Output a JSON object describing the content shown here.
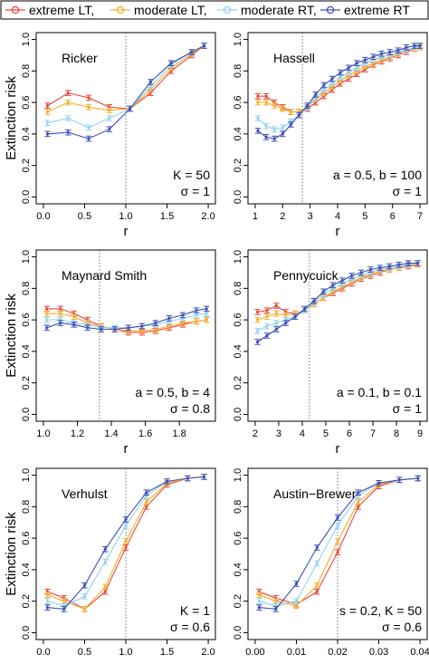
{
  "legend": {
    "placement": "top",
    "entries": [
      {
        "label": "extreme LT,",
        "color": "#e8453c"
      },
      {
        "label": "moderate LT,",
        "color": "#f5b02c"
      },
      {
        "label": "moderate RT,",
        "color": "#8fd3f2"
      },
      {
        "label": "extreme RT",
        "color": "#3d4fb8"
      }
    ]
  },
  "ylabel": "Extinction risk",
  "chart_data": [
    {
      "type": "line",
      "title": "Ricker",
      "annotation": [
        "K = 50",
        "σ = 1"
      ],
      "xlabel": "r",
      "ylabel": "Extinction risk",
      "xlim": [
        0,
        2
      ],
      "ylim": [
        0,
        1
      ],
      "xticks": [
        "0.0",
        "0.5",
        "1.0",
        "1.5",
        "2.0"
      ],
      "yticks": [
        "0.0",
        "0.2",
        "0.4",
        "0.6",
        "0.8",
        "1.0"
      ],
      "vline": 1.0,
      "x": [
        0.05,
        0.3,
        0.55,
        0.8,
        1.05,
        1.3,
        1.55,
        1.8,
        1.95
      ],
      "series": [
        {
          "name": "extreme LT",
          "values": [
            0.58,
            0.66,
            0.63,
            0.57,
            0.56,
            0.66,
            0.8,
            0.9,
            0.96
          ]
        },
        {
          "name": "moderate LT",
          "values": [
            0.54,
            0.6,
            0.57,
            0.55,
            0.56,
            0.68,
            0.82,
            0.91,
            0.96
          ]
        },
        {
          "name": "moderate RT",
          "values": [
            0.47,
            0.5,
            0.44,
            0.5,
            0.56,
            0.7,
            0.84,
            0.92,
            0.96
          ]
        },
        {
          "name": "extreme RT",
          "values": [
            0.4,
            0.41,
            0.37,
            0.43,
            0.56,
            0.73,
            0.85,
            0.92,
            0.96
          ]
        }
      ]
    },
    {
      "type": "line",
      "title": "Hassell",
      "annotation": [
        "a = 0.5, b = 100",
        "σ = 1"
      ],
      "xlabel": "r",
      "ylabel": "",
      "xlim": [
        1,
        7
      ],
      "ylim": [
        0,
        1
      ],
      "xticks": [
        "1",
        "2",
        "3",
        "4",
        "5",
        "6",
        "7"
      ],
      "yticks": [
        "0.0",
        "0.2",
        "0.4",
        "0.6",
        "0.8",
        "1.0"
      ],
      "vline": 2.72,
      "x": [
        1.1,
        1.4,
        1.7,
        2.0,
        2.3,
        2.6,
        2.9,
        3.2,
        3.5,
        3.8,
        4.1,
        4.4,
        4.7,
        5.0,
        5.3,
        5.6,
        5.9,
        6.2,
        6.5,
        6.8,
        7.0
      ],
      "series": [
        {
          "name": "extreme LT",
          "values": [
            0.64,
            0.64,
            0.6,
            0.57,
            0.54,
            0.54,
            0.56,
            0.6,
            0.64,
            0.68,
            0.72,
            0.75,
            0.78,
            0.81,
            0.84,
            0.86,
            0.88,
            0.9,
            0.92,
            0.94,
            0.95
          ]
        },
        {
          "name": "moderate LT",
          "values": [
            0.6,
            0.6,
            0.58,
            0.56,
            0.54,
            0.54,
            0.57,
            0.62,
            0.66,
            0.7,
            0.74,
            0.77,
            0.8,
            0.83,
            0.85,
            0.87,
            0.89,
            0.91,
            0.93,
            0.94,
            0.95
          ]
        },
        {
          "name": "moderate RT",
          "values": [
            0.5,
            0.45,
            0.43,
            0.44,
            0.48,
            0.52,
            0.57,
            0.63,
            0.68,
            0.72,
            0.76,
            0.79,
            0.82,
            0.85,
            0.87,
            0.89,
            0.9,
            0.92,
            0.93,
            0.95,
            0.96
          ]
        },
        {
          "name": "extreme RT",
          "values": [
            0.42,
            0.38,
            0.37,
            0.4,
            0.46,
            0.52,
            0.58,
            0.65,
            0.71,
            0.75,
            0.79,
            0.82,
            0.85,
            0.87,
            0.89,
            0.91,
            0.92,
            0.93,
            0.95,
            0.96,
            0.96
          ]
        }
      ]
    },
    {
      "type": "line",
      "title": "Maynard Smith",
      "annotation": [
        "a = 0.5, b = 4",
        "σ = 0.8"
      ],
      "xlabel": "r",
      "ylabel": "Extinction risk",
      "xlim": [
        1.0,
        1.97
      ],
      "ylim": [
        0,
        1
      ],
      "xticks": [
        "1.0",
        "1.2",
        "1.4",
        "1.6",
        "1.8"
      ],
      "yticks": [
        "0.0",
        "0.2",
        "0.4",
        "0.6",
        "0.8",
        "1.0"
      ],
      "vline": 1.33,
      "x": [
        1.02,
        1.1,
        1.18,
        1.26,
        1.34,
        1.42,
        1.5,
        1.58,
        1.66,
        1.74,
        1.82,
        1.9,
        1.96
      ],
      "series": [
        {
          "name": "extreme LT",
          "values": [
            0.67,
            0.67,
            0.64,
            0.6,
            0.56,
            0.54,
            0.52,
            0.52,
            0.53,
            0.55,
            0.57,
            0.59,
            0.6
          ]
        },
        {
          "name": "moderate LT",
          "values": [
            0.64,
            0.64,
            0.62,
            0.58,
            0.56,
            0.54,
            0.53,
            0.53,
            0.54,
            0.56,
            0.58,
            0.59,
            0.6
          ]
        },
        {
          "name": "moderate RT",
          "values": [
            0.6,
            0.6,
            0.58,
            0.57,
            0.55,
            0.55,
            0.55,
            0.56,
            0.57,
            0.59,
            0.61,
            0.63,
            0.64
          ]
        },
        {
          "name": "extreme RT",
          "values": [
            0.55,
            0.58,
            0.57,
            0.55,
            0.54,
            0.54,
            0.55,
            0.56,
            0.58,
            0.61,
            0.63,
            0.66,
            0.67
          ]
        }
      ]
    },
    {
      "type": "line",
      "title": "Pennycuick",
      "annotation": [
        "a = 0.1, b = 0.1",
        "σ = 1"
      ],
      "xlabel": "r",
      "ylabel": "",
      "xlim": [
        2,
        9
      ],
      "ylim": [
        0,
        1
      ],
      "xticks": [
        "2",
        "3",
        "4",
        "5",
        "6",
        "7",
        "8",
        "9"
      ],
      "yticks": [
        "0.0",
        "0.2",
        "0.4",
        "0.6",
        "0.8",
        "1.0"
      ],
      "vline": 4.3,
      "x": [
        2.1,
        2.5,
        2.9,
        3.3,
        3.7,
        4.1,
        4.5,
        4.9,
        5.3,
        5.7,
        6.1,
        6.5,
        6.9,
        7.3,
        7.7,
        8.1,
        8.5,
        8.9
      ],
      "series": [
        {
          "name": "extreme LT",
          "values": [
            0.65,
            0.66,
            0.69,
            0.65,
            0.64,
            0.66,
            0.7,
            0.74,
            0.77,
            0.8,
            0.83,
            0.86,
            0.88,
            0.9,
            0.92,
            0.93,
            0.94,
            0.95
          ]
        },
        {
          "name": "moderate LT",
          "values": [
            0.6,
            0.62,
            0.64,
            0.63,
            0.64,
            0.66,
            0.7,
            0.74,
            0.78,
            0.81,
            0.84,
            0.87,
            0.89,
            0.91,
            0.92,
            0.93,
            0.95,
            0.95
          ]
        },
        {
          "name": "moderate RT",
          "values": [
            0.53,
            0.56,
            0.58,
            0.6,
            0.62,
            0.66,
            0.71,
            0.76,
            0.8,
            0.83,
            0.86,
            0.88,
            0.9,
            0.92,
            0.93,
            0.94,
            0.95,
            0.96
          ]
        },
        {
          "name": "extreme RT",
          "values": [
            0.46,
            0.5,
            0.54,
            0.58,
            0.62,
            0.67,
            0.72,
            0.78,
            0.82,
            0.85,
            0.88,
            0.9,
            0.92,
            0.93,
            0.94,
            0.95,
            0.96,
            0.96
          ]
        }
      ]
    },
    {
      "type": "line",
      "title": "Verhulst",
      "annotation": [
        "K = 1",
        "σ = 0.6"
      ],
      "xlabel": "r",
      "ylabel": "Extinction risk",
      "xlim": [
        0,
        2
      ],
      "ylim": [
        0,
        1
      ],
      "xticks": [
        "0.0",
        "0.5",
        "1.0",
        "1.5",
        "2.0"
      ],
      "yticks": [
        "0.0",
        "0.2",
        "0.4",
        "0.6",
        "0.8",
        "1.0"
      ],
      "vline": 1.0,
      "x": [
        0.05,
        0.25,
        0.5,
        0.75,
        1.0,
        1.25,
        1.5,
        1.75,
        1.95
      ],
      "series": [
        {
          "name": "extreme LT",
          "values": [
            0.26,
            0.22,
            0.15,
            0.26,
            0.54,
            0.8,
            0.94,
            0.98,
            0.99
          ]
        },
        {
          "name": "moderate LT",
          "values": [
            0.24,
            0.2,
            0.15,
            0.29,
            0.58,
            0.83,
            0.95,
            0.98,
            0.99
          ]
        },
        {
          "name": "moderate RT",
          "values": [
            0.2,
            0.17,
            0.23,
            0.45,
            0.68,
            0.87,
            0.96,
            0.98,
            0.99
          ]
        },
        {
          "name": "extreme RT",
          "values": [
            0.16,
            0.15,
            0.3,
            0.53,
            0.72,
            0.89,
            0.96,
            0.98,
            0.99
          ]
        }
      ]
    },
    {
      "type": "line",
      "title": "Austin−Brewer",
      "annotation": [
        "s = 0.2, K = 50",
        "σ = 0.6"
      ],
      "xlabel": "r",
      "ylabel": "",
      "xlim": [
        0,
        0.04
      ],
      "ylim": [
        0,
        1
      ],
      "xticks": [
        "0.00",
        "0.01",
        "0.02",
        "0.03",
        "0.04"
      ],
      "yticks": [
        "0.0",
        "0.2",
        "0.4",
        "0.6",
        "0.8",
        "1.0"
      ],
      "vline": 0.02,
      "x": [
        0.001,
        0.005,
        0.01,
        0.015,
        0.02,
        0.025,
        0.03,
        0.035,
        0.0395
      ],
      "series": [
        {
          "name": "extreme LT",
          "values": [
            0.26,
            0.22,
            0.18,
            0.26,
            0.51,
            0.8,
            0.93,
            0.97,
            0.98
          ]
        },
        {
          "name": "moderate LT",
          "values": [
            0.24,
            0.2,
            0.17,
            0.3,
            0.58,
            0.83,
            0.94,
            0.97,
            0.98
          ]
        },
        {
          "name": "moderate RT",
          "values": [
            0.2,
            0.17,
            0.2,
            0.44,
            0.68,
            0.87,
            0.95,
            0.97,
            0.98
          ]
        },
        {
          "name": "extreme RT",
          "values": [
            0.16,
            0.15,
            0.31,
            0.54,
            0.73,
            0.89,
            0.95,
            0.97,
            0.98
          ]
        }
      ]
    }
  ]
}
